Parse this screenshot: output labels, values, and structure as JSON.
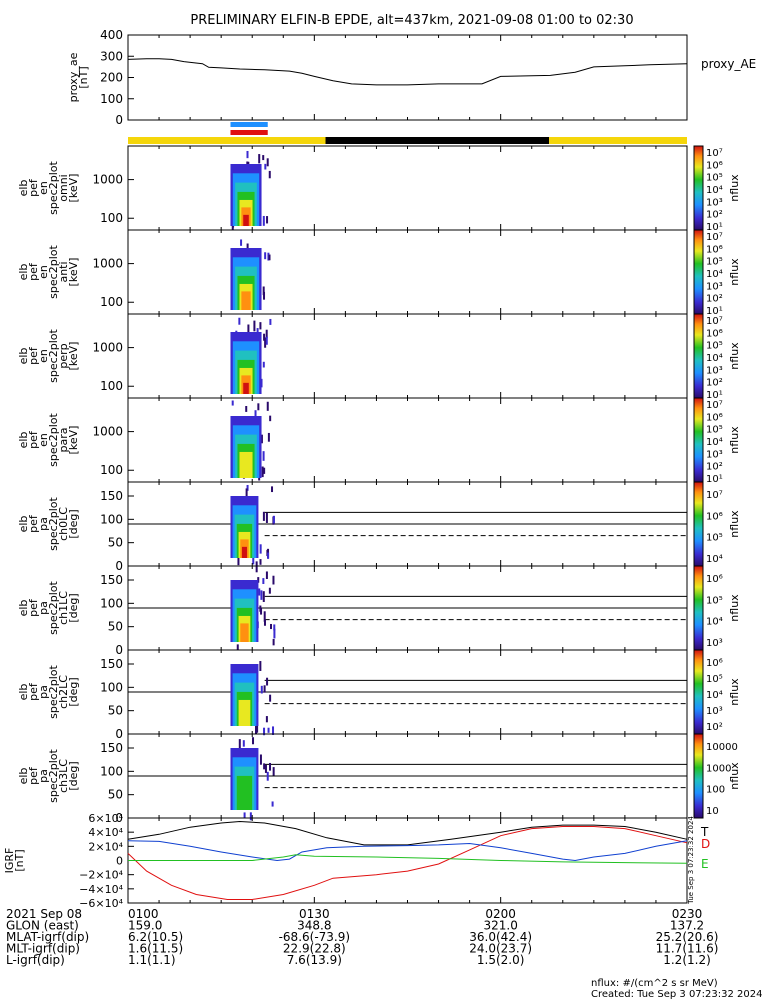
{
  "title": "PRELIMINARY ELFIN-B EPDE, alt=437km, 2021-09-08 01:00 to 02:30",
  "proxy_ae": {
    "ylabel": [
      "proxy_ae",
      "[nT]"
    ],
    "legend": "proxy_AE",
    "yticks": [
      "400",
      "300",
      "200",
      "100",
      "0"
    ],
    "ylim": [
      0,
      400
    ],
    "x": [
      0,
      3,
      5,
      7,
      9,
      12,
      13,
      15,
      18,
      20,
      22,
      26,
      28,
      30,
      33,
      36,
      40,
      45,
      50,
      53,
      57,
      60,
      68,
      72,
      75,
      80,
      84,
      90
    ],
    "y": [
      285,
      288,
      288,
      285,
      275,
      265,
      248,
      245,
      240,
      238,
      236,
      230,
      220,
      205,
      185,
      170,
      165,
      165,
      170,
      170,
      170,
      205,
      210,
      225,
      250,
      255,
      260,
      265
    ]
  },
  "bars": {
    "segments": [
      {
        "from": 0,
        "to": 31.8,
        "color": "#f5d60a"
      },
      {
        "from": 31.8,
        "to": 67.8,
        "color": "#000000"
      },
      {
        "from": 67.8,
        "to": 90,
        "color": "#f5d60a"
      }
    ],
    "markers": [
      {
        "from": 16.5,
        "to": 22.5,
        "color": "#1e90ff"
      },
      {
        "from": 16.5,
        "to": 22.5,
        "color": "#e01010"
      }
    ]
  },
  "spec_panels": [
    {
      "ylabel": [
        "elb",
        "pef",
        "en",
        "spec2plot",
        "omni",
        "[keV]"
      ],
      "yticks": [
        "1000",
        "100"
      ],
      "cbar": {
        "label": "nflux",
        "ticks": [
          "10⁷",
          "10⁶",
          "10⁵",
          "10⁴",
          "10³",
          "10²",
          "10¹"
        ]
      }
    },
    {
      "ylabel": [
        "elb",
        "pef",
        "en",
        "spec2plot",
        "anti",
        "[keV]"
      ],
      "yticks": [
        "1000",
        "100"
      ],
      "cbar": {
        "label": "nflux",
        "ticks": [
          "10⁷",
          "10⁶",
          "10⁵",
          "10⁴",
          "10³",
          "10²",
          "10¹"
        ]
      }
    },
    {
      "ylabel": [
        "elb",
        "pef",
        "en",
        "spec2plot",
        "perp",
        "[keV]"
      ],
      "yticks": [
        "1000",
        "100"
      ],
      "cbar": {
        "label": "nflux",
        "ticks": [
          "10⁷",
          "10⁶",
          "10⁵",
          "10⁴",
          "10³",
          "10²",
          "10¹"
        ]
      }
    },
    {
      "ylabel": [
        "elb",
        "pef",
        "en",
        "spec2plot",
        "para",
        "[keV]"
      ],
      "yticks": [
        "1000",
        "100"
      ],
      "cbar": {
        "label": "nflux",
        "ticks": [
          "10⁷",
          "10⁶",
          "10⁵",
          "10⁴",
          "10³",
          "10²",
          "10¹"
        ]
      }
    }
  ],
  "pa_panels": [
    {
      "ylabel": [
        "elb",
        "pef",
        "pa",
        "spec2plot",
        "ch0LC",
        "[deg]"
      ],
      "yticks": [
        "150",
        "100",
        "50",
        "0"
      ],
      "cbar": {
        "label": "nflux",
        "ticks": [
          "10⁷",
          "10⁶",
          "10⁵",
          "10⁴"
        ]
      }
    },
    {
      "ylabel": [
        "elb",
        "pef",
        "pa",
        "spec2plot",
        "ch1LC",
        "[deg]"
      ],
      "yticks": [
        "150",
        "100",
        "50",
        "0"
      ],
      "cbar": {
        "label": "nflux",
        "ticks": [
          "10⁶",
          "10⁵",
          "10⁴",
          "10³"
        ]
      }
    },
    {
      "ylabel": [
        "elb",
        "pef",
        "pa",
        "spec2plot",
        "ch2LC",
        "[deg]"
      ],
      "yticks": [
        "150",
        "100",
        "50",
        "0"
      ],
      "cbar": {
        "label": "nflux",
        "ticks": [
          "10⁶",
          "10⁵",
          "10⁴",
          "10³",
          "10²"
        ]
      }
    },
    {
      "ylabel": [
        "elb",
        "pef",
        "pa",
        "spec2plot",
        "ch3LC",
        "[deg]"
      ],
      "yticks": [
        "150",
        "100",
        "50",
        "0"
      ],
      "cbar": {
        "label": "nflux",
        "ticks": [
          "10000",
          "1000",
          "100",
          "10"
        ]
      }
    }
  ],
  "igrf": {
    "ylabel": [
      "IGRF",
      "[nT]"
    ],
    "yticks": [
      "6×10⁴",
      "4×10⁴",
      "2×10⁴",
      "0",
      "−2×10⁴",
      "−4×10⁴",
      "−6×10⁴"
    ],
    "ylim": [
      -60000,
      60000
    ],
    "legend": [
      {
        "label": "T",
        "color": "#000000"
      },
      {
        "label": "D",
        "color": "#e01010"
      },
      {
        "label": "E",
        "color": "#22c022"
      }
    ],
    "series": [
      {
        "name": "T",
        "color": "#000000",
        "x": [
          0,
          5,
          10,
          15,
          18,
          22,
          27,
          32,
          38,
          45,
          52,
          60,
          65,
          70,
          75,
          80,
          85,
          90
        ],
        "y": [
          30000,
          37000,
          47000,
          53000,
          55000,
          53000,
          45000,
          32000,
          22000,
          22000,
          30000,
          40000,
          47000,
          50000,
          50000,
          48000,
          40000,
          30000
        ]
      },
      {
        "name": "D",
        "color": "#e01010",
        "x": [
          0,
          3,
          7,
          11,
          16,
          20,
          25,
          30,
          33,
          40,
          45,
          50,
          55,
          60,
          65,
          70,
          75,
          80,
          85,
          90
        ],
        "y": [
          10000,
          -15000,
          -35000,
          -48000,
          -55000,
          -55000,
          -48000,
          -35000,
          -25000,
          -20000,
          -15000,
          -5000,
          15000,
          35000,
          45000,
          48000,
          48000,
          45000,
          35000,
          25000
        ]
      },
      {
        "name": "blue",
        "color": "#1040d0",
        "x": [
          0,
          5,
          10,
          15,
          20,
          24,
          26,
          28,
          32,
          38,
          45,
          50,
          55,
          60,
          65,
          70,
          72,
          75,
          80,
          85,
          90
        ],
        "y": [
          28000,
          27000,
          20000,
          12000,
          5000,
          0,
          2000,
          12000,
          18000,
          20000,
          21000,
          22000,
          24000,
          18000,
          10000,
          2000,
          0,
          5000,
          10000,
          20000,
          28000
        ]
      },
      {
        "name": "E",
        "color": "#22c022",
        "x": [
          0,
          10,
          20,
          25,
          27,
          30,
          40,
          50,
          60,
          70,
          80,
          90
        ],
        "y": [
          0,
          0,
          0,
          5000,
          8000,
          6000,
          5000,
          3000,
          0,
          -2000,
          -3000,
          -4000
        ]
      }
    ]
  },
  "xaxis": {
    "ticks": [
      {
        "t": 0,
        "label": "0100"
      },
      {
        "t": 30,
        "label": "0130"
      },
      {
        "t": 60,
        "label": "0200"
      },
      {
        "t": 90,
        "label": "0230"
      }
    ]
  },
  "bottom_table": {
    "date": "2021 Sep 08",
    "rows": [
      {
        "label": "GLON (east)",
        "values": [
          "159.0",
          "348.8",
          "321.0",
          "137.2"
        ]
      },
      {
        "label": "MLAT-igrf(dip)",
        "values": [
          "6.2(10.5)",
          "-68.6(-73.9)",
          "36.0(42.4)",
          "25.2(20.6)"
        ]
      },
      {
        "label": "MLT-igrf(dip)",
        "values": [
          "1.6(11.5)",
          "22.9(22.8)",
          "24.0(23.7)",
          "11.7(11.6)"
        ]
      },
      {
        "label": "L-igrf(dip)",
        "values": [
          "1.1(1.1)",
          "7.6(13.9)",
          "1.5(2.0)",
          "1.2(1.2)"
        ]
      }
    ]
  },
  "footer": {
    "units": "nflux: #/(cm^2 s sr MeV)",
    "created": "Created: Tue Sep  3 07:23:32 2024",
    "side_stamp": "Tue Sep  3 07:23:32 2024"
  }
}
